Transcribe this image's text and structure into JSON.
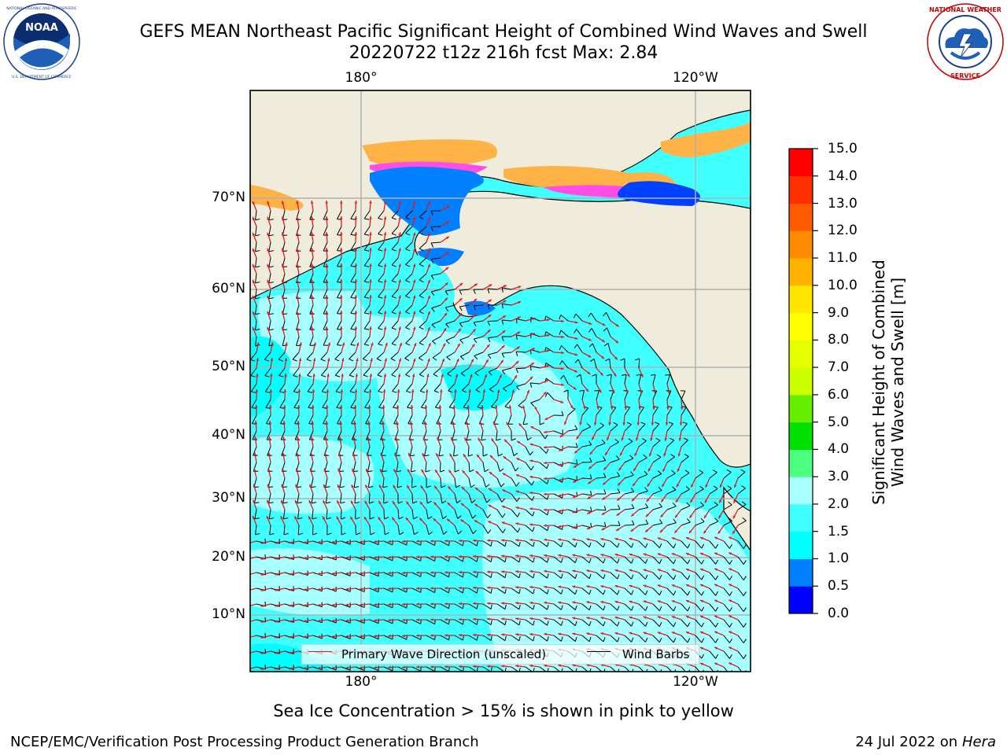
{
  "header": {
    "title_line1": "GEFS MEAN Northeast Pacific Significant Height of Combined Wind Waves and Swell",
    "title_line2": "20220722 t12z 216h fcst   Max: 2.84"
  },
  "logos": {
    "left": {
      "name": "NOAA",
      "ring_text": "NATIONAL OCEANIC AND ATMOSPHERIC ADMINISTRATION · U.S. DEPARTMENT OF COMMERCE"
    },
    "right": {
      "name": "NATIONAL WEATHER SERVICE"
    }
  },
  "map": {
    "lon_labels_top": [
      "180°",
      "120°W"
    ],
    "lon_labels_bottom": [
      "180°",
      "120°W"
    ],
    "lat_labels": [
      "70°N",
      "60°N",
      "50°N",
      "40°N",
      "30°N",
      "20°N",
      "10°N"
    ],
    "colors": {
      "land": "#efecdc",
      "coastline": "#000000",
      "gridline": "#b0b0b0",
      "wave_arrow": "#e31a1c",
      "wind_barb": "#000000",
      "sea_ice": [
        "#ff4de6",
        "#ff9fd0",
        "#ffb347",
        "#ffd24d"
      ]
    }
  },
  "legend": {
    "wave_label": "Primary Wave Direction (unscaled)",
    "wind_label": "Wind Barbs"
  },
  "colorbar": {
    "title_line1": "Significant Height of Combined",
    "title_line2": "Wind Waves and Swell [m]",
    "ticks": [
      "15.0",
      "14.0",
      "13.0",
      "12.0",
      "11.0",
      "10.0",
      "9.0",
      "8.0",
      "7.0",
      "6.0",
      "5.0",
      "4.0",
      "3.0",
      "2.0",
      "1.5",
      "1.0",
      "0.5",
      "0.0"
    ],
    "bins": [
      {
        "lo": 0.0,
        "hi": 0.5,
        "color": "#0000ff"
      },
      {
        "lo": 0.5,
        "hi": 1.0,
        "color": "#0080ff"
      },
      {
        "lo": 1.0,
        "hi": 1.5,
        "color": "#00ffff"
      },
      {
        "lo": 1.5,
        "hi": 2.0,
        "color": "#40ffff"
      },
      {
        "lo": 2.0,
        "hi": 3.0,
        "color": "#a8ffff"
      },
      {
        "lo": 3.0,
        "hi": 4.0,
        "color": "#4dff80"
      },
      {
        "lo": 4.0,
        "hi": 5.0,
        "color": "#00e000"
      },
      {
        "lo": 5.0,
        "hi": 6.0,
        "color": "#66ee00"
      },
      {
        "lo": 6.0,
        "hi": 7.0,
        "color": "#ccff00"
      },
      {
        "lo": 7.0,
        "hi": 8.0,
        "color": "#e6ff00"
      },
      {
        "lo": 8.0,
        "hi": 9.0,
        "color": "#ffff00"
      },
      {
        "lo": 9.0,
        "hi": 10.0,
        "color": "#ffe600"
      },
      {
        "lo": 10.0,
        "hi": 11.0,
        "color": "#ffb300"
      },
      {
        "lo": 11.0,
        "hi": 12.0,
        "color": "#ff8c00"
      },
      {
        "lo": 12.0,
        "hi": 13.0,
        "color": "#ff5a00"
      },
      {
        "lo": 13.0,
        "hi": 14.0,
        "color": "#ff3000"
      },
      {
        "lo": 14.0,
        "hi": 15.0,
        "color": "#ff0000"
      }
    ]
  },
  "footer": {
    "note": "Sea Ice Concentration > 15% is shown in pink to yellow",
    "credit": "NCEP/EMC/Verification Post Processing Product Generation Branch",
    "date": "24 Jul 2022 on",
    "host": "Hera"
  }
}
